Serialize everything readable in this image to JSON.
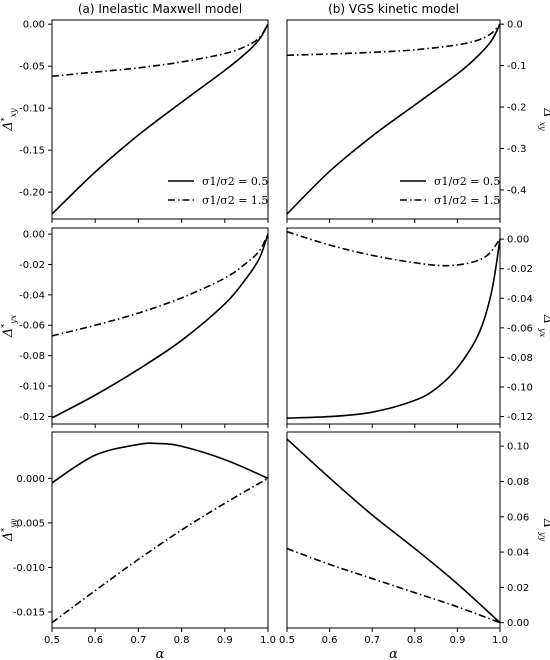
{
  "figure": {
    "xlabel": "α",
    "legend": {
      "entries": [
        {
          "label": "σ1/σ2 = 0.5",
          "style": "solid"
        },
        {
          "label": "σ1/σ2 = 1.5",
          "style": "dashdot"
        }
      ]
    }
  },
  "chart_data": [
    {
      "type": "line",
      "title": "(a) Inelastic Maxwell model",
      "ylabel": "Δ*xy",
      "xlim": [
        0.5,
        1.0
      ],
      "ylim": [
        -0.232,
        0.005
      ],
      "xticks": [
        "0.5",
        "0.6",
        "0.7",
        "0.8",
        "0.9",
        "1.0"
      ],
      "yticks": [
        "0.00",
        "-0.05",
        "-0.10",
        "-0.15",
        "-0.20"
      ],
      "ytick_side": "left",
      "legend": "bottom-right",
      "series": [
        {
          "name": "σ1/σ2 = 0.5",
          "style": "solid",
          "x": [
            0.5,
            0.6,
            0.7,
            0.8,
            0.9,
            0.95,
            0.98,
            1.0
          ],
          "y": [
            -0.226,
            -0.176,
            -0.132,
            -0.093,
            -0.055,
            -0.034,
            -0.018,
            0.0
          ]
        },
        {
          "name": "σ1/σ2 = 1.5",
          "style": "dashdot",
          "x": [
            0.5,
            0.6,
            0.7,
            0.8,
            0.9,
            0.95,
            0.98,
            1.0
          ],
          "y": [
            -0.062,
            -0.057,
            -0.052,
            -0.045,
            -0.035,
            -0.026,
            -0.016,
            0.0
          ]
        }
      ]
    },
    {
      "type": "line",
      "title": "(b) VGS kinetic model",
      "ylabel": "Δ*xy",
      "xlim": [
        0.5,
        1.0
      ],
      "ylim": [
        -0.47,
        0.01
      ],
      "xticks": [
        "0.5",
        "0.6",
        "0.7",
        "0.8",
        "0.9",
        "1.0"
      ],
      "yticks": [
        "0.0",
        "-0.1",
        "-0.2",
        "-0.3",
        "-0.4"
      ],
      "ytick_side": "right",
      "legend": "bottom-right",
      "series": [
        {
          "name": "σ1/σ2 = 0.5",
          "style": "solid",
          "x": [
            0.5,
            0.6,
            0.7,
            0.8,
            0.9,
            0.95,
            0.98,
            1.0
          ],
          "y": [
            -0.458,
            -0.355,
            -0.27,
            -0.195,
            -0.12,
            -0.075,
            -0.04,
            0.0
          ]
        },
        {
          "name": "σ1/σ2 = 1.5",
          "style": "dashdot",
          "x": [
            0.5,
            0.6,
            0.7,
            0.8,
            0.9,
            0.95,
            0.98,
            1.0
          ],
          "y": [
            -0.075,
            -0.072,
            -0.068,
            -0.062,
            -0.05,
            -0.038,
            -0.022,
            0.0
          ]
        }
      ]
    },
    {
      "type": "line",
      "ylabel": "Δ*yx",
      "xlim": [
        0.5,
        1.0
      ],
      "ylim": [
        -0.125,
        0.004
      ],
      "xticks": [
        "0.5",
        "0.6",
        "0.7",
        "0.8",
        "0.9",
        "1.0"
      ],
      "yticks": [
        "0.00",
        "-0.02",
        "-0.04",
        "-0.06",
        "-0.08",
        "-0.10",
        "-0.12"
      ],
      "ytick_side": "left",
      "series": [
        {
          "name": "σ1/σ2 = 0.5",
          "style": "solid",
          "x": [
            0.5,
            0.6,
            0.7,
            0.8,
            0.9,
            0.95,
            0.98,
            1.0
          ],
          "y": [
            -0.121,
            -0.106,
            -0.089,
            -0.07,
            -0.046,
            -0.029,
            -0.016,
            0.0
          ]
        },
        {
          "name": "σ1/σ2 = 1.5",
          "style": "dashdot",
          "x": [
            0.5,
            0.6,
            0.7,
            0.8,
            0.9,
            0.95,
            0.98,
            1.0
          ],
          "y": [
            -0.067,
            -0.06,
            -0.052,
            -0.042,
            -0.029,
            -0.019,
            -0.011,
            0.0
          ]
        }
      ]
    },
    {
      "type": "line",
      "ylabel": "Δ*yx",
      "xlim": [
        0.5,
        1.0
      ],
      "ylim": [
        -0.125,
        0.0075
      ],
      "xticks": [
        "0.5",
        "0.6",
        "0.7",
        "0.8",
        "0.9",
        "1.0"
      ],
      "yticks": [
        "0.00",
        "-0.02",
        "-0.04",
        "-0.06",
        "-0.08",
        "-0.10",
        "-0.12"
      ],
      "ytick_side": "right",
      "series": [
        {
          "name": "σ1/σ2 = 0.5",
          "style": "solid",
          "x": [
            0.5,
            0.6,
            0.7,
            0.8,
            0.85,
            0.9,
            0.95,
            0.98,
            1.0
          ],
          "y": [
            -0.121,
            -0.12,
            -0.117,
            -0.109,
            -0.101,
            -0.087,
            -0.064,
            -0.036,
            0.0
          ]
        },
        {
          "name": "σ1/σ2 = 1.5",
          "style": "dashdot",
          "x": [
            0.5,
            0.6,
            0.7,
            0.8,
            0.87,
            0.93,
            0.97,
            1.0
          ],
          "y": [
            0.005,
            -0.004,
            -0.011,
            -0.016,
            -0.018,
            -0.016,
            -0.011,
            0.0
          ]
        }
      ]
    },
    {
      "type": "line",
      "ylabel": "Δ*yy",
      "xlabel": "α",
      "xlim": [
        0.5,
        1.0
      ],
      "ylim": [
        -0.0168,
        0.0052
      ],
      "xticks": [
        "0.5",
        "0.6",
        "0.7",
        "0.8",
        "0.9",
        "1.0"
      ],
      "yticks": [
        "0.000",
        "-0.005",
        "-0.010",
        "-0.015"
      ],
      "ytick_side": "left",
      "series": [
        {
          "name": "σ1/σ2 = 0.5",
          "style": "solid",
          "x": [
            0.5,
            0.6,
            0.7,
            0.75,
            0.8,
            0.9,
            1.0
          ],
          "y": [
            -0.0005,
            0.0026,
            0.0038,
            0.0039,
            0.0036,
            0.0021,
            0.0
          ]
        },
        {
          "name": "σ1/σ2 = 1.5",
          "style": "dashdot",
          "x": [
            0.5,
            0.6,
            0.7,
            0.8,
            0.9,
            1.0
          ],
          "y": [
            -0.0162,
            -0.0126,
            -0.0091,
            -0.0058,
            -0.0028,
            0.0
          ]
        }
      ]
    },
    {
      "type": "line",
      "ylabel": "Δ*yy",
      "xlabel": "α",
      "xlim": [
        0.5,
        1.0
      ],
      "ylim": [
        -0.003,
        0.108
      ],
      "xticks": [
        "0.5",
        "0.6",
        "0.7",
        "0.8",
        "0.9",
        "1.0"
      ],
      "yticks": [
        "0.10",
        "0.08",
        "0.06",
        "0.04",
        "0.02",
        "0.00"
      ],
      "ytick_side": "right",
      "series": [
        {
          "name": "σ1/σ2 = 0.5",
          "style": "solid",
          "x": [
            0.5,
            0.6,
            0.7,
            0.8,
            0.9,
            1.0
          ],
          "y": [
            0.104,
            0.082,
            0.061,
            0.042,
            0.022,
            0.0
          ]
        },
        {
          "name": "σ1/σ2 = 1.5",
          "style": "dashdot",
          "x": [
            0.5,
            0.6,
            0.7,
            0.8,
            0.9,
            1.0
          ],
          "y": [
            0.042,
            0.033,
            0.025,
            0.017,
            0.009,
            0.0
          ]
        }
      ]
    }
  ]
}
